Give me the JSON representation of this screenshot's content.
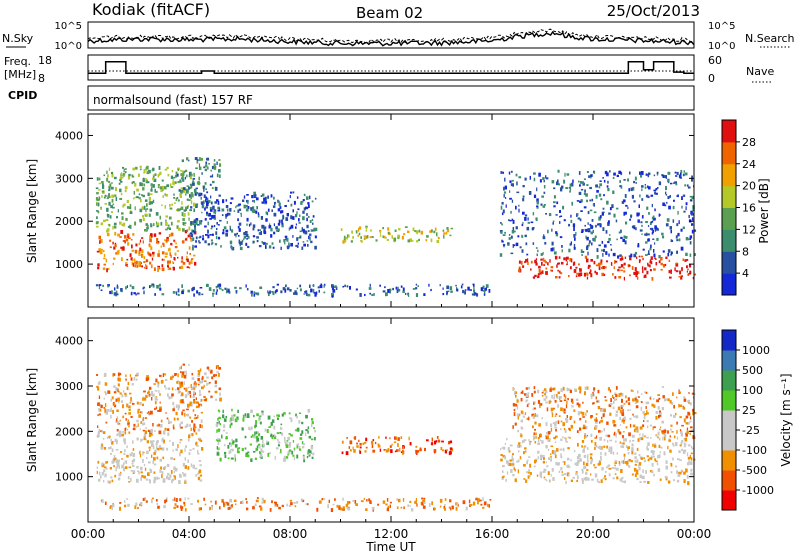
{
  "header": {
    "station": "Kodiak (fitACF)",
    "beam": "Beam 02",
    "date": "25/Oct/2013"
  },
  "top_panels": {
    "noise": {
      "left_label": "N.Sky",
      "left_ticks": [
        "10^5",
        "10^0"
      ],
      "right_ticks": [
        "10^5",
        "10^0"
      ],
      "right_label": "N.Search"
    },
    "freq": {
      "left_label_1": "Freq.",
      "left_label_2": "[MHz]",
      "left_ticks": [
        "18",
        "8"
      ],
      "right_ticks": [
        "60",
        "0"
      ],
      "right_label": "Nave"
    },
    "cpid": {
      "label": "CPID",
      "text": "normalsound (fast) 157 RF"
    }
  },
  "axes": {
    "ylabel": "Slant Range [km]",
    "xlabel": "Time UT",
    "xticks": [
      "00:00",
      "04:00",
      "08:00",
      "12:00",
      "16:00",
      "20:00",
      "00:00"
    ],
    "yticks": [
      "1000",
      "2000",
      "3000",
      "4000"
    ]
  },
  "colorbars": {
    "power": {
      "label": "Power [dB]",
      "colors": [
        "#1428d8",
        "#2850a0",
        "#3c8c6e",
        "#5aa050",
        "#b4c828",
        "#f0a000",
        "#f06400",
        "#e01010"
      ],
      "tick_labels": [
        "4",
        "8",
        "12",
        "16",
        "20",
        "24",
        "28"
      ]
    },
    "velocity": {
      "label": "Velocity [m s⁻¹]",
      "colors": [
        "#f00000",
        "#f05000",
        "#f09000",
        "#c8c8c8",
        "#c8c8c8",
        "#50c828",
        "#3ca050",
        "#3c7ab4",
        "#1428c8"
      ],
      "tick_labels": [
        "-1000",
        "-500",
        "-100",
        "-25",
        "25",
        "100",
        "500",
        "1000"
      ]
    }
  },
  "chart_data": [
    {
      "type": "line",
      "title": "Kodiak (fitACF) Beam 02 25/Oct/2013",
      "panel": "noise",
      "x": [
        0,
        2,
        4,
        6,
        8,
        10,
        12,
        14,
        16,
        17,
        18,
        18.5,
        19,
        20,
        21,
        22,
        23,
        24
      ],
      "series": [
        {
          "name": "N.Sky",
          "values": [
            1.2,
            1.6,
            1.4,
            1.6,
            1.0,
            0.6,
            0.6,
            0.7,
            1.2,
            2.2,
            2.8,
            3.0,
            2.2,
            1.6,
            1.4,
            1.2,
            1.0,
            0.8
          ]
        },
        {
          "name": "N.Search",
          "values": [
            1.8,
            2.1,
            2.0,
            2.2,
            1.6,
            1.2,
            1.2,
            1.3,
            1.8,
            2.8,
            3.4,
            3.6,
            2.8,
            2.2,
            2.0,
            1.8,
            1.6,
            1.3
          ]
        }
      ],
      "ylim": [
        0,
        5
      ],
      "ylabel": "N.Sky"
    },
    {
      "type": "line",
      "panel": "freq",
      "x": [
        0,
        0.5,
        0.7,
        1.2,
        1.5,
        2.0,
        4.5,
        5.0,
        10.0,
        16.8,
        17.0,
        21.0,
        21.4,
        22.0,
        22.4,
        23.0,
        23.2,
        23.6,
        24
      ],
      "series": [
        {
          "name": "Freq. [MHz]",
          "values": [
            10.5,
            10.5,
            15.5,
            15.5,
            10.5,
            10.5,
            11.5,
            10.5,
            10.5,
            10.5,
            10.5,
            10.5,
            15.5,
            12,
            15.5,
            15.5,
            11,
            10.5,
            10.5
          ]
        },
        {
          "name": "Nave",
          "values": [
            21,
            21,
            21,
            21,
            21,
            21,
            21,
            21,
            21,
            21,
            21,
            21,
            21,
            21,
            21,
            21,
            21,
            21,
            21
          ]
        }
      ],
      "ylim": [
        8,
        18
      ]
    },
    {
      "type": "heatmap",
      "panel": "power",
      "xlabel": "Time UT",
      "ylabel": "Slant Range [km]",
      "xlim": [
        0,
        24
      ],
      "ylim": [
        0,
        4500
      ],
      "zlabel": "Power [dB]",
      "zlim": [
        0,
        32
      ],
      "regions": [
        {
          "t0": 0.3,
          "t1": 4.2,
          "r0": 900,
          "r1": 1800,
          "level": 6
        },
        {
          "t0": 0.3,
          "t1": 4.2,
          "r0": 1800,
          "r1": 3300,
          "level": 3
        },
        {
          "t0": 3.5,
          "t1": 5.2,
          "r0": 2700,
          "r1": 3500,
          "level": 2
        },
        {
          "t0": 4.0,
          "t1": 9.0,
          "r0": 1400,
          "r1": 2700,
          "level": 1
        },
        {
          "t0": 0.3,
          "t1": 16.0,
          "r0": 300,
          "r1": 550,
          "level": 1
        },
        {
          "t0": 10.0,
          "t1": 14.5,
          "r0": 1550,
          "r1": 1900,
          "level": 4
        },
        {
          "t0": 16.3,
          "t1": 24,
          "r0": 1200,
          "r1": 3200,
          "level": 1
        },
        {
          "t0": 17.0,
          "t1": 24,
          "r0": 700,
          "r1": 1200,
          "level": 7
        }
      ]
    },
    {
      "type": "heatmap",
      "panel": "velocity",
      "xlabel": "Time UT",
      "ylabel": "Slant Range [km]",
      "xlim": [
        0,
        24
      ],
      "ylim": [
        0,
        4500
      ],
      "zlabel": "Velocity [m s⁻¹]",
      "zlim": [
        -1000,
        1000
      ],
      "regions": [
        {
          "t0": 0.3,
          "t1": 4.5,
          "r0": 900,
          "r1": 2000,
          "level": 3
        },
        {
          "t0": 0.3,
          "t1": 4.5,
          "r0": 2000,
          "r1": 3300,
          "level": 2
        },
        {
          "t0": 3.5,
          "t1": 5.2,
          "r0": 2700,
          "r1": 3500,
          "level": 2
        },
        {
          "t0": 5.0,
          "t1": 9.0,
          "r0": 1400,
          "r1": 2500,
          "level": 5
        },
        {
          "t0": 0.3,
          "t1": 16.0,
          "r0": 300,
          "r1": 550,
          "level": 2
        },
        {
          "t0": 10.0,
          "t1": 14.5,
          "r0": 1550,
          "r1": 1900,
          "level": 1
        },
        {
          "t0": 16.3,
          "t1": 24,
          "r0": 900,
          "r1": 1900,
          "level": 3
        },
        {
          "t0": 16.8,
          "t1": 24,
          "r0": 1900,
          "r1": 3000,
          "level": 2
        }
      ]
    }
  ]
}
